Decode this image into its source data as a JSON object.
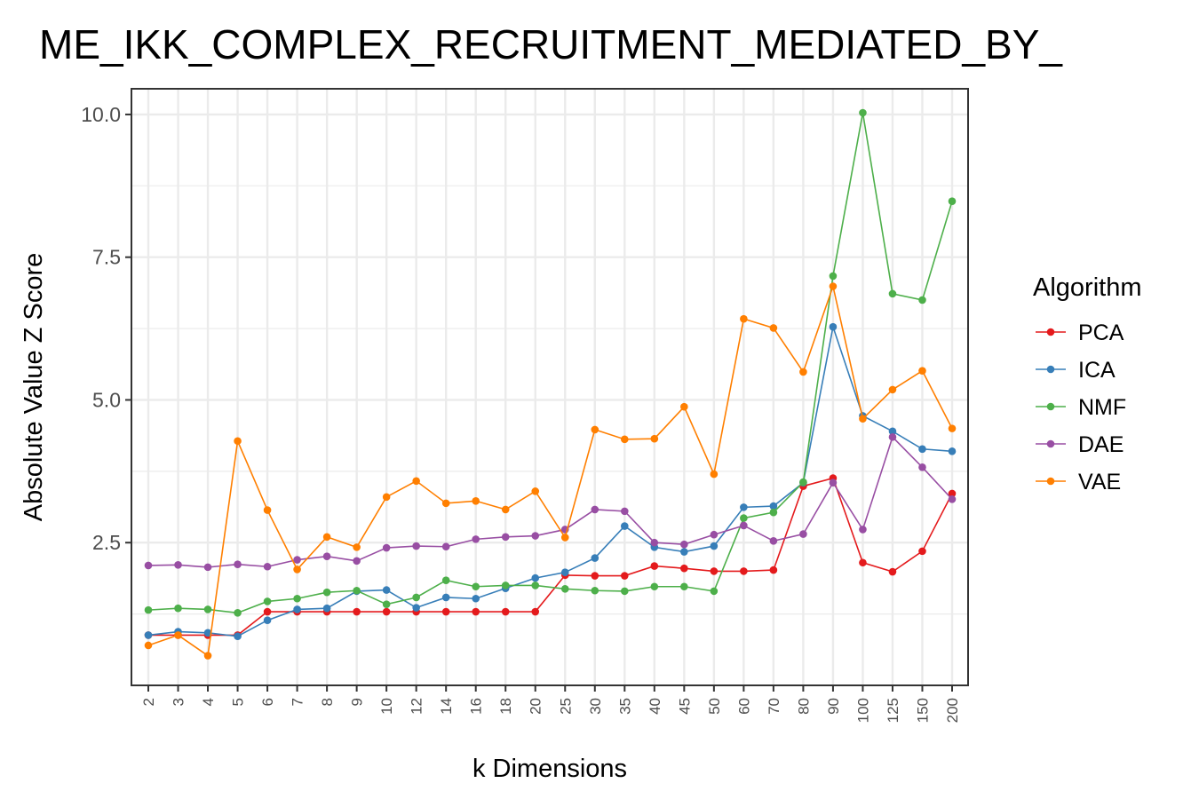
{
  "chart_data": {
    "type": "line",
    "title": "ME_IKK_COMPLEX_RECRUITMENT_MEDIATED_BY_",
    "xlabel": "k Dimensions",
    "ylabel": "Absolute Value Z Score",
    "categories": [
      "2",
      "3",
      "4",
      "5",
      "6",
      "7",
      "8",
      "9",
      "10",
      "12",
      "14",
      "16",
      "18",
      "20",
      "25",
      "30",
      "35",
      "40",
      "45",
      "50",
      "60",
      "70",
      "80",
      "90",
      "100",
      "125",
      "150",
      "200"
    ],
    "ylim": [
      0.0,
      10.45
    ],
    "yticks": [
      2.5,
      5.0,
      7.5,
      10.0
    ],
    "ytick_labels": [
      "2.5",
      "5.0",
      "7.5",
      "10.0"
    ],
    "grid": true,
    "legend": {
      "title": "Algorithm",
      "position": "right"
    },
    "series": [
      {
        "name": "PCA",
        "color": "#e41a1c",
        "values": [
          0.88,
          0.88,
          0.88,
          0.88,
          1.29,
          1.29,
          1.29,
          1.29,
          1.29,
          1.29,
          1.29,
          1.29,
          1.29,
          1.29,
          1.93,
          1.92,
          1.92,
          2.09,
          2.05,
          2.0,
          2.0,
          2.02,
          3.49,
          3.63,
          2.15,
          1.99,
          2.35,
          3.36
        ]
      },
      {
        "name": "ICA",
        "color": "#377eb8",
        "values": [
          0.88,
          0.94,
          0.92,
          0.86,
          1.14,
          1.33,
          1.35,
          1.65,
          1.67,
          1.36,
          1.54,
          1.52,
          1.7,
          1.88,
          1.98,
          2.23,
          2.79,
          2.42,
          2.34,
          2.44,
          3.12,
          3.14,
          3.55,
          6.28,
          4.72,
          4.45,
          4.14,
          4.1
        ]
      },
      {
        "name": "NMF",
        "color": "#4daf4a",
        "values": [
          1.32,
          1.35,
          1.33,
          1.27,
          1.47,
          1.52,
          1.63,
          1.66,
          1.42,
          1.54,
          1.84,
          1.73,
          1.75,
          1.75,
          1.69,
          1.66,
          1.65,
          1.73,
          1.73,
          1.65,
          2.93,
          3.03,
          3.56,
          7.17,
          10.03,
          6.86,
          6.75,
          8.48
        ]
      },
      {
        "name": "DAE",
        "color": "#984ea3",
        "values": [
          2.1,
          2.11,
          2.07,
          2.12,
          2.08,
          2.2,
          2.26,
          2.18,
          2.41,
          2.44,
          2.43,
          2.56,
          2.6,
          2.62,
          2.73,
          3.08,
          3.05,
          2.5,
          2.47,
          2.64,
          2.8,
          2.53,
          2.65,
          3.55,
          2.73,
          4.35,
          3.82,
          3.26
        ]
      },
      {
        "name": "VAE",
        "color": "#ff7f00",
        "values": [
          0.7,
          0.88,
          0.52,
          4.28,
          3.07,
          2.03,
          2.6,
          2.42,
          3.3,
          3.58,
          3.19,
          3.23,
          3.08,
          3.4,
          2.59,
          4.48,
          4.31,
          4.32,
          4.88,
          3.7,
          6.42,
          6.26,
          5.49,
          6.99,
          4.67,
          5.18,
          5.51,
          4.5
        ]
      }
    ]
  }
}
